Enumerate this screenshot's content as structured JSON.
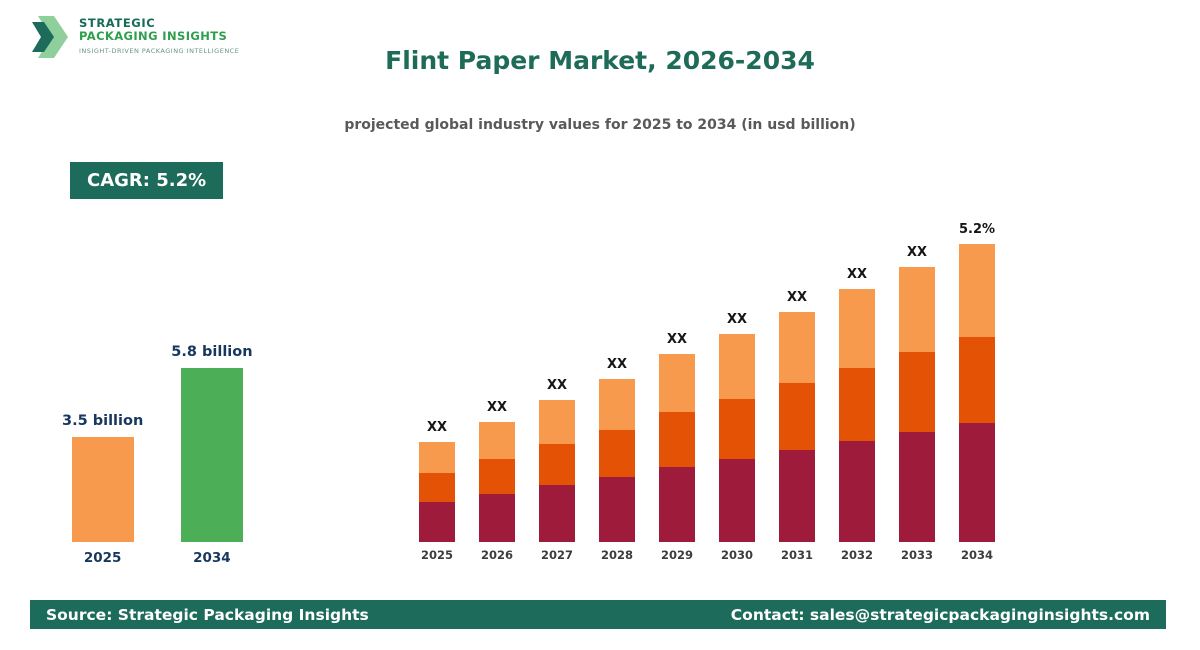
{
  "logo": {
    "name_line1": "STRATEGIC",
    "name_line2": "PACKAGING INSIGHTS",
    "tagline": "INSIGHT-DRIVEN PACKAGING INTELLIGENCE"
  },
  "header": {
    "title": "Flint Paper Market, 2026-2034",
    "subtitle": "projected global industry values for 2025 to 2034 (in usd billion)"
  },
  "badge": {
    "label": "CAGR: 5.2%"
  },
  "mini_chart": {
    "bars": [
      {
        "year": "2025",
        "label": "3.5 billion",
        "value": 3.5,
        "color": "#f79a4d"
      },
      {
        "year": "2034",
        "label": "5.8 billion",
        "value": 5.8,
        "color": "#4caf57"
      }
    ]
  },
  "chart_data": {
    "type": "bar",
    "stacked": true,
    "title": "Flint Paper Market, 2026-2034",
    "categories": [
      "2025",
      "2026",
      "2027",
      "2028",
      "2029",
      "2030",
      "2031",
      "2032",
      "2033",
      "2034"
    ],
    "bar_labels": [
      "XX",
      "XX",
      "XX",
      "XX",
      "XX",
      "XX",
      "XX",
      "XX",
      "XX",
      "5.2%"
    ],
    "series": [
      {
        "name": "segment-bottom",
        "color": "#9e1b3c",
        "values": [
          40,
          48,
          57,
          65,
          75,
          83,
          92,
          101,
          110,
          119
        ]
      },
      {
        "name": "segment-middle",
        "color": "#e35205",
        "values": [
          29,
          35,
          41,
          47,
          55,
          60,
          67,
          73,
          80,
          86
        ]
      },
      {
        "name": "segment-top",
        "color": "#f79a4d",
        "values": [
          31,
          37,
          44,
          51,
          58,
          65,
          71,
          79,
          85,
          93
        ]
      }
    ]
  },
  "footer": {
    "source": "Source: Strategic Packaging Insights",
    "contact": "Contact: sales@strategicpackaginginsights.com"
  },
  "colors": {
    "brand_green": "#1d6b5a",
    "maroon": "#9e1b3c",
    "dark_orange": "#e35205",
    "light_orange": "#f79a4d",
    "growth_green": "#4caf57",
    "navy_label": "#17375e"
  }
}
